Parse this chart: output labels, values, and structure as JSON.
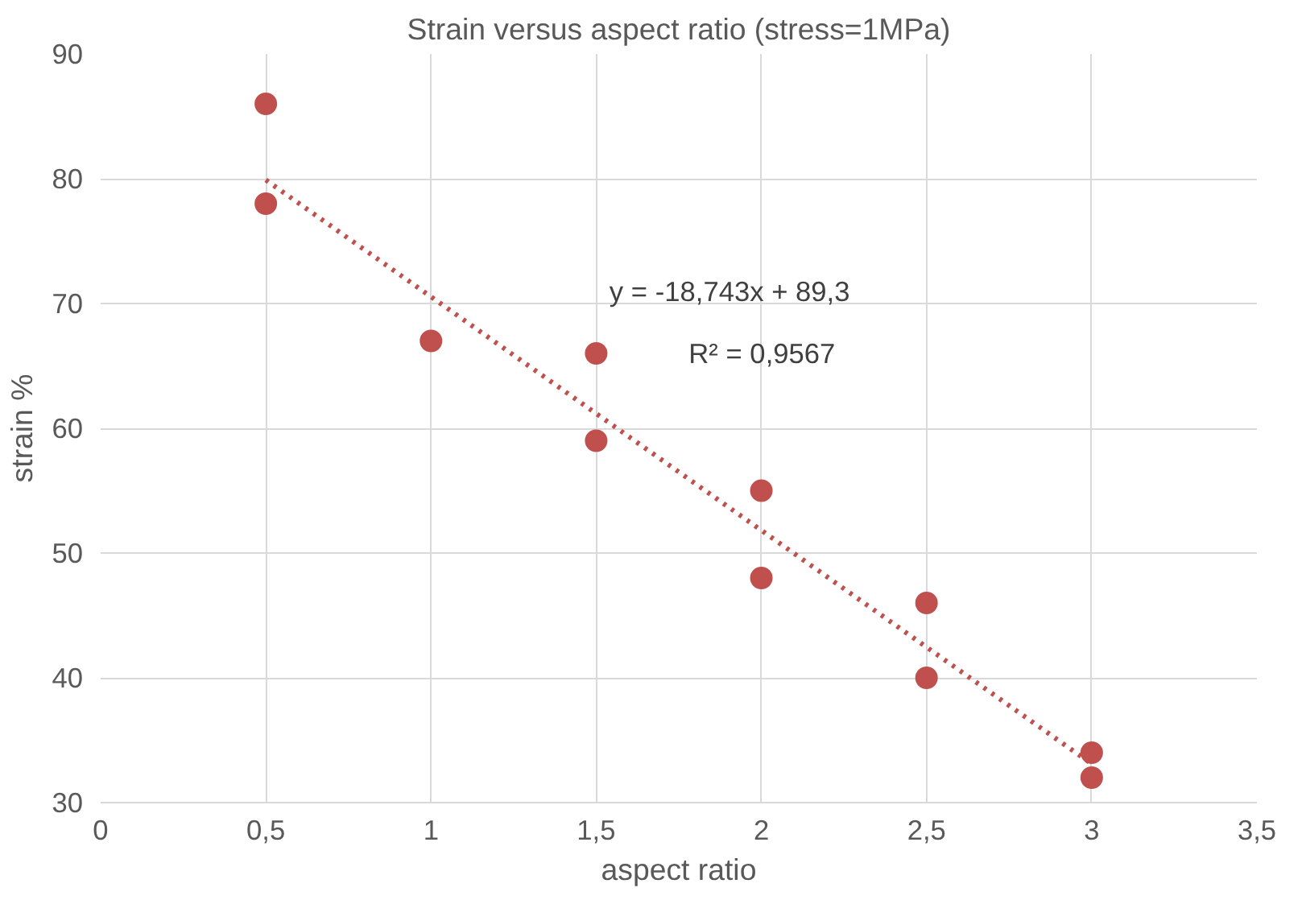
{
  "chart_data": {
    "type": "scatter",
    "title": "Strain versus aspect ratio (stress=1MPa)",
    "xlabel": "aspect ratio",
    "ylabel": "strain %",
    "xlim": [
      0,
      3.5
    ],
    "ylim": [
      30,
      90
    ],
    "xticks": [
      0,
      {
        "value": 0.5,
        "label": "0,5"
      },
      1,
      {
        "value": 1.5,
        "label": "1,5"
      },
      2,
      {
        "value": 2.5,
        "label": "2,5"
      },
      3,
      {
        "value": 3.5,
        "label": "3,5"
      }
    ],
    "yticks": [
      30,
      40,
      50,
      60,
      70,
      80,
      90
    ],
    "grid": true,
    "marker": "circle",
    "series": [
      {
        "color": "#c0504d",
        "x": [
          0.5,
          0.5,
          1,
          1.5,
          1.5,
          2,
          2,
          2.5,
          2.5,
          3,
          3
        ],
        "values": [
          86,
          78,
          67,
          66,
          59,
          55,
          48,
          46,
          40,
          34,
          32
        ]
      },
      {
        "type": "line",
        "color": "#c0504d",
        "marker": "none",
        "line_style": "dotted",
        "x": [
          0.5,
          3
        ],
        "values": [
          79.9,
          33.1
        ]
      }
    ],
    "annotations": [
      "y = -18,743x + 89,3",
      "R² = 0,9567"
    ]
  }
}
